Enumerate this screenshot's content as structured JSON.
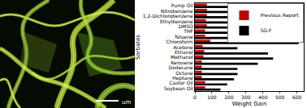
{
  "chart_data": {
    "type": "bar",
    "orientation": "horizontal",
    "categories": [
      "Pump Oil",
      "Nitrobenzene",
      "1,2-Dichlorobenzene",
      "Ethylbenzene",
      "DMSO",
      "THF",
      "Toluene",
      "Chloroform",
      "Acetone",
      "Ethanol",
      "Methanol",
      "Kerosene",
      "Dodecane",
      "Octane",
      "Heptane",
      "Castor Oil",
      "Soybean Oil"
    ],
    "series": [
      {
        "name": "Previous Report",
        "color": "#c00000",
        "values": [
          70,
          70,
          70,
          65,
          70,
          60,
          60,
          90,
          45,
          55,
          50,
          40,
          40,
          40,
          40,
          60,
          60
        ]
      },
      {
        "name": "SG-F",
        "color": "#000000",
        "values": [
          270,
          310,
          375,
          200,
          240,
          210,
          330,
          610,
          250,
          430,
          460,
          370,
          250,
          250,
          230,
          190,
          150
        ]
      }
    ],
    "x_label": "Weight Gain",
    "y_label": "Sorbates",
    "xlim": [
      0,
      640
    ],
    "xticks": [
      0,
      100,
      200,
      300,
      400,
      500,
      600
    ],
    "legend": "upper right",
    "grid": false
  },
  "image": {
    "scale_label": "um"
  }
}
